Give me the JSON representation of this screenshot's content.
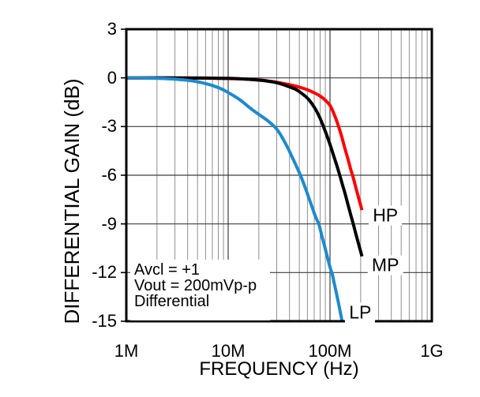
{
  "chart_data": {
    "type": "line",
    "title": "",
    "xlabel": "FREQUENCY (Hz)",
    "ylabel": "DIFFERENTIAL GAIN (dB)",
    "x_scale": "log",
    "xlim_mhz": [
      1,
      1000
    ],
    "ylim": [
      -15,
      3
    ],
    "y_tick_step": 3,
    "grid": "on",
    "x_ticks": [
      {
        "label": "1M",
        "mhz": 1
      },
      {
        "label": "10M",
        "mhz": 10
      },
      {
        "label": "100M",
        "mhz": 100
      },
      {
        "label": "1G",
        "mhz": 1000
      }
    ],
    "y_ticks": [
      3,
      0,
      -3,
      -6,
      -9,
      -12,
      -15
    ],
    "colors": {
      "hp": "#fe0000",
      "mp": "#000000",
      "lp": "#1e8acd",
      "grid_minor": "#8f8f8f",
      "grid_major": "#3d3d3d",
      "border": "#000000"
    },
    "series": [
      {
        "name": "HP",
        "color_key": "hp",
        "points_mhz_db": [
          [
            1,
            0
          ],
          [
            2,
            0
          ],
          [
            3,
            0
          ],
          [
            5,
            -0.01
          ],
          [
            7,
            -0.02
          ],
          [
            10,
            -0.04
          ],
          [
            14,
            -0.07
          ],
          [
            20,
            -0.13
          ],
          [
            25,
            -0.2
          ],
          [
            30,
            -0.27
          ],
          [
            40,
            -0.42
          ],
          [
            50,
            -0.57
          ],
          [
            60,
            -0.73
          ],
          [
            70,
            -0.92
          ],
          [
            80,
            -1.12
          ],
          [
            90,
            -1.38
          ],
          [
            100,
            -1.7
          ],
          [
            110,
            -2.25
          ],
          [
            120,
            -2.9
          ],
          [
            130,
            -3.6
          ],
          [
            140,
            -4.35
          ],
          [
            150,
            -5.0
          ],
          [
            160,
            -5.65
          ],
          [
            170,
            -6.2
          ],
          [
            180,
            -6.8
          ],
          [
            190,
            -7.35
          ],
          [
            200,
            -7.85
          ],
          [
            206,
            -8.15
          ]
        ]
      },
      {
        "name": "MP",
        "color_key": "mp",
        "points_mhz_db": [
          [
            1,
            0
          ],
          [
            3,
            0
          ],
          [
            6,
            -0.01
          ],
          [
            10,
            -0.03
          ],
          [
            15,
            -0.08
          ],
          [
            20,
            -0.14
          ],
          [
            25,
            -0.21
          ],
          [
            30,
            -0.3
          ],
          [
            35,
            -0.42
          ],
          [
            40,
            -0.55
          ],
          [
            45,
            -0.68
          ],
          [
            50,
            -0.85
          ],
          [
            60,
            -1.25
          ],
          [
            70,
            -1.8
          ],
          [
            80,
            -2.5
          ],
          [
            90,
            -3.3
          ],
          [
            100,
            -4.1
          ],
          [
            110,
            -4.9
          ],
          [
            120,
            -5.65
          ],
          [
            130,
            -6.4
          ],
          [
            140,
            -7.1
          ],
          [
            150,
            -7.8
          ],
          [
            160,
            -8.45
          ],
          [
            170,
            -9.05
          ],
          [
            180,
            -9.65
          ],
          [
            190,
            -10.2
          ],
          [
            200,
            -10.7
          ],
          [
            206,
            -11.0
          ]
        ]
      },
      {
        "name": "LP",
        "color_key": "lp",
        "points_mhz_db": [
          [
            1,
            0
          ],
          [
            1.5,
            -0.01
          ],
          [
            2,
            -0.03
          ],
          [
            2.5,
            -0.05
          ],
          [
            3,
            -0.08
          ],
          [
            4,
            -0.15
          ],
          [
            5,
            -0.24
          ],
          [
            6,
            -0.35
          ],
          [
            7,
            -0.47
          ],
          [
            8,
            -0.6
          ],
          [
            9,
            -0.74
          ],
          [
            10,
            -0.9
          ],
          [
            12,
            -1.2
          ],
          [
            14,
            -1.5
          ],
          [
            16,
            -1.8
          ],
          [
            18,
            -2.05
          ],
          [
            20,
            -2.25
          ],
          [
            24,
            -2.6
          ],
          [
            29,
            -3.05
          ],
          [
            33,
            -3.55
          ],
          [
            38,
            -4.25
          ],
          [
            43,
            -4.95
          ],
          [
            48,
            -5.6
          ],
          [
            52,
            -6.1
          ],
          [
            57,
            -6.75
          ],
          [
            62,
            -7.4
          ],
          [
            67,
            -8.0
          ],
          [
            72,
            -8.55
          ],
          [
            78,
            -9.05
          ],
          [
            84,
            -9.85
          ],
          [
            90,
            -10.55
          ],
          [
            96,
            -11.25
          ],
          [
            102,
            -11.85
          ],
          [
            105,
            -12.05
          ],
          [
            110,
            -12.65
          ],
          [
            115,
            -13.2
          ],
          [
            120,
            -13.75
          ],
          [
            125,
            -14.3
          ],
          [
            130,
            -14.85
          ],
          [
            134,
            -15.4
          ]
        ]
      }
    ],
    "curve_labels": [
      {
        "text": "HP",
        "mhz": 350,
        "db": -8.5
      },
      {
        "text": "MP",
        "mhz": 350,
        "db": -11.55
      },
      {
        "text": "LP",
        "mhz": 198,
        "db": -14.45
      }
    ],
    "annotation_lines": [
      "Avcl = +1",
      "Vout = 200mVp-p",
      "Differential"
    ]
  }
}
